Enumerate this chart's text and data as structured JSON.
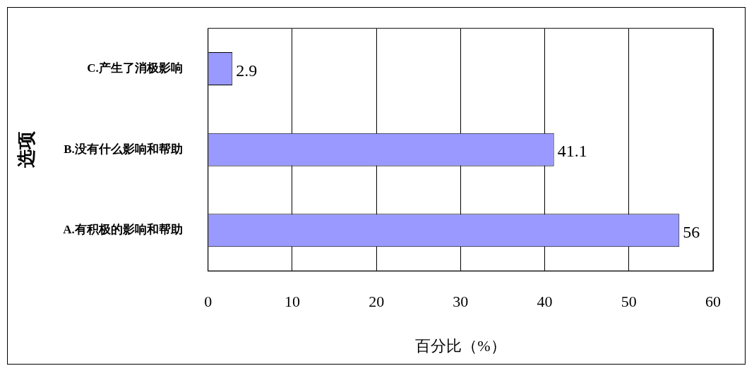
{
  "chart_data": {
    "type": "bar",
    "orientation": "horizontal",
    "categories": [
      "C.产生了消极影响",
      "B.没有什么影响和帮助",
      "A.有积极的影响和帮助"
    ],
    "values": [
      2.9,
      41.1,
      56
    ],
    "color": "#9999ff",
    "xlim": [
      0,
      60
    ],
    "xticks": [
      0,
      10,
      20,
      30,
      40,
      50,
      60
    ],
    "grid": "x",
    "data_labels": true,
    "xlabel": "百分比（%）",
    "ylabel": "选项"
  }
}
